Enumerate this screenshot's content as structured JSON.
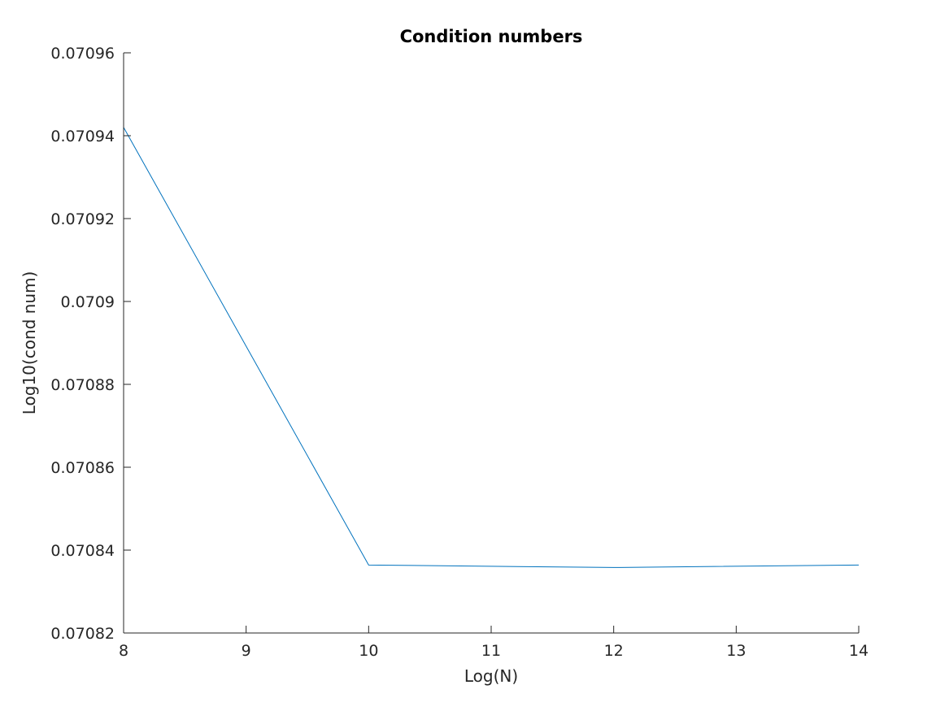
{
  "chart_data": {
    "type": "line",
    "title": "Condition numbers",
    "xlabel": "Log(N)",
    "ylabel": "Log10(cond num)",
    "xlim": [
      8,
      14
    ],
    "ylim": [
      0.07082,
      0.07096
    ],
    "xticks": [
      8,
      9,
      10,
      11,
      12,
      13,
      14
    ],
    "yticks": [
      0.07082,
      0.07084,
      0.07086,
      0.07088,
      0.0709,
      0.07092,
      0.07094,
      0.07096
    ],
    "xtick_labels": [
      "8",
      "9",
      "10",
      "11",
      "12",
      "13",
      "14"
    ],
    "ytick_labels": [
      "0.07082",
      "0.07084",
      "0.07086",
      "0.07088",
      "0.0709",
      "0.07092",
      "0.07094",
      "0.07096"
    ],
    "grid": false,
    "series": [
      {
        "color": "#0072BD",
        "x": [
          8,
          10,
          12,
          14
        ],
        "y": [
          0.070942,
          0.0708364,
          0.0708358,
          0.0708364
        ]
      }
    ]
  }
}
